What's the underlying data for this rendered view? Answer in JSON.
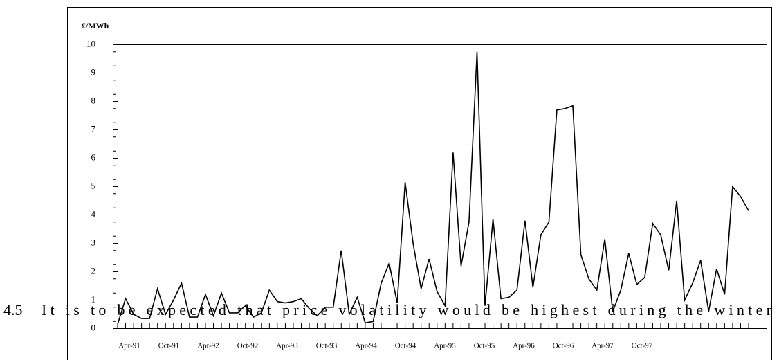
{
  "chart_data": {
    "type": "line",
    "ylabel": "£/MWh",
    "x_labels": [
      "Apr-91",
      "Oct-91",
      "Apr-92",
      "Oct-92",
      "Apr-93",
      "Oct-93",
      "Apr-94",
      "Oct-94",
      "Apr-95",
      "Oct-95",
      "Apr-96",
      "Oct-96",
      "Apr-97",
      "Oct-97"
    ],
    "series": [
      {
        "color": "#000000",
        "values": [
          0.15,
          1.05,
          0.5,
          0.35,
          0.35,
          1.4,
          0.5,
          1.0,
          1.6,
          0.4,
          0.4,
          1.2,
          0.45,
          1.25,
          0.55,
          0.55,
          0.8,
          0.4,
          0.55,
          1.35,
          0.95,
          0.9,
          0.95,
          1.05,
          0.7,
          0.45,
          0.75,
          0.75,
          2.75,
          0.5,
          1.1,
          0.2,
          0.25,
          1.6,
          2.3,
          0.9,
          5.15,
          3.0,
          1.4,
          2.45,
          1.3,
          0.8,
          6.2,
          2.2,
          3.75,
          9.75,
          0.8,
          3.85,
          1.05,
          1.1,
          1.35,
          3.8,
          1.45,
          3.3,
          3.75,
          7.7,
          7.75,
          7.85,
          2.6,
          1.75,
          1.35,
          3.15,
          0.6,
          1.35,
          2.65,
          1.55,
          1.8,
          3.7,
          3.3,
          2.05,
          4.5,
          1.0,
          1.6,
          2.4,
          0.6,
          2.1,
          1.2,
          5.0,
          4.65,
          4.15
        ]
      }
    ],
    "ylim": [
      0,
      10
    ],
    "yticks": [
      0,
      1,
      2,
      3,
      4,
      5,
      6,
      7,
      8,
      9,
      10
    ]
  },
  "paragraph": {
    "number": "4.5",
    "text": "It is to be expected that price volatility would be highest during the winter"
  }
}
